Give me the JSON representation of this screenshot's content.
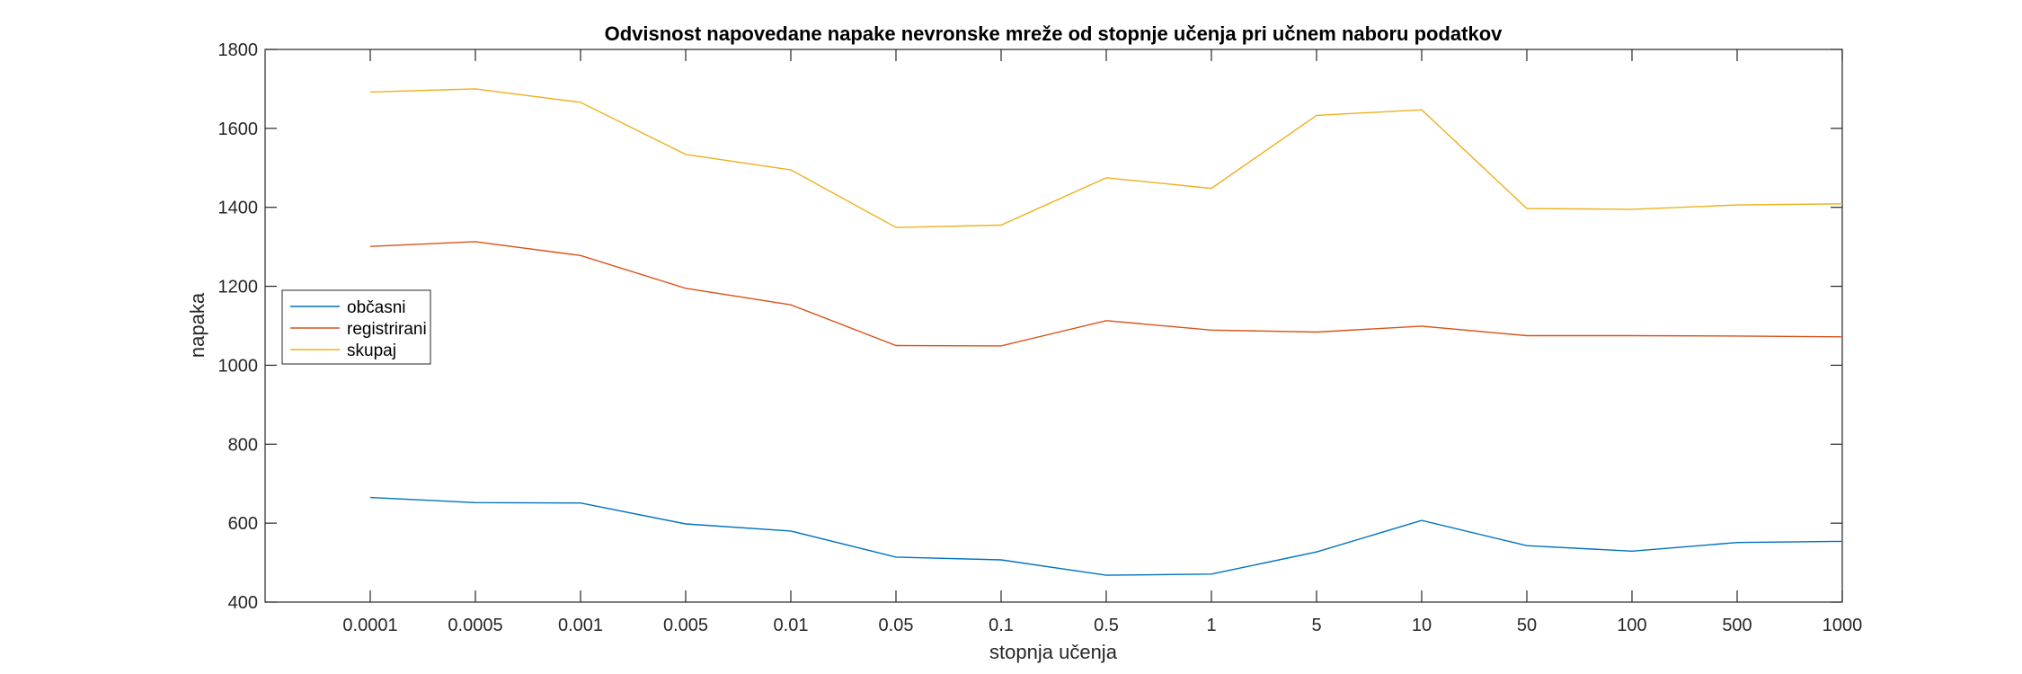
{
  "chart_data": {
    "type": "line",
    "title": "Odvisnost napovedane napake nevronske mreže od stopnje učenja pri učnem naboru podatkov",
    "xlabel": "stopnja učenja",
    "ylabel": "napaka",
    "categories": [
      "0.0001",
      "0.0005",
      "0.001",
      "0.005",
      "0.01",
      "0.05",
      "0.1",
      "0.5",
      "1",
      "5",
      "10",
      "50",
      "100",
      "500",
      "1000"
    ],
    "ylim": [
      400,
      1800
    ],
    "yticks": [
      "400",
      "600",
      "800",
      "1000",
      "1200",
      "1400",
      "1600",
      "1800"
    ],
    "grid": false,
    "legend_position": "left",
    "series": [
      {
        "name": "občasni",
        "color": "#0072BD",
        "values": [
          665,
          652,
          651,
          598,
          580,
          514,
          507,
          468,
          471,
          527,
          607,
          543,
          529,
          551,
          554
        ]
      },
      {
        "name": "registrirani",
        "color": "#D95319",
        "values": [
          1301,
          1313,
          1278,
          1195,
          1153,
          1050,
          1049,
          1113,
          1089,
          1084,
          1099,
          1075,
          1075,
          1074,
          1072
        ]
      },
      {
        "name": "skupaj",
        "color": "#EDB120",
        "values": [
          1692,
          1700,
          1666,
          1534,
          1495,
          1349,
          1355,
          1475,
          1448,
          1633,
          1647,
          1397,
          1395,
          1406,
          1409
        ]
      }
    ]
  }
}
